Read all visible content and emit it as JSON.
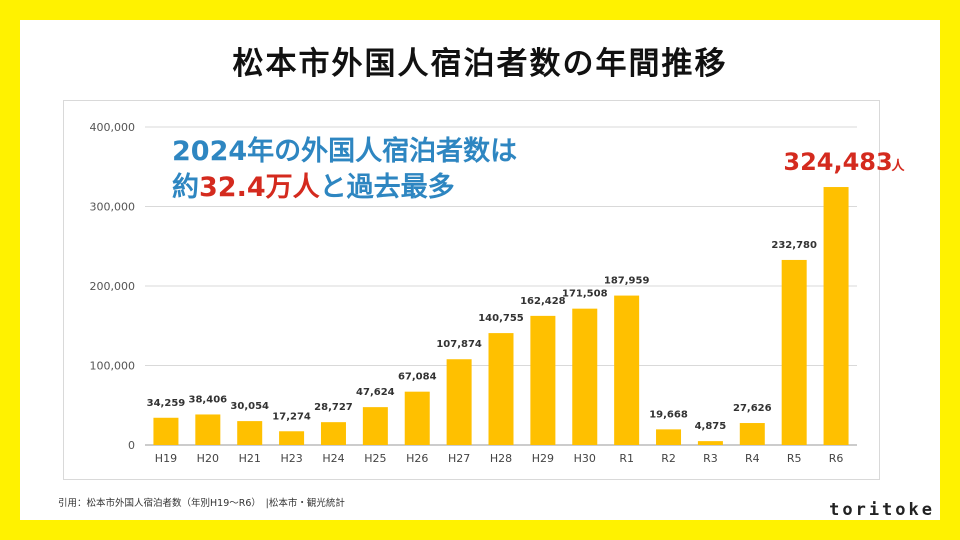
{
  "title": "松本市外国人宿泊者数の年間推移",
  "headline": {
    "line1": "2024年の外国人宿泊者数は",
    "line2_prefix": "約",
    "line2_highlight": "32.4万人",
    "line2_suffix": "と過去最多"
  },
  "citation": "引用：松本市外国人宿泊者数（年別H19〜R6）　|松本市・観光統計",
  "brand": "toritoke",
  "colors": {
    "frame": "#fff200",
    "bar": "#ffc000",
    "headline": "#2e86c1",
    "highlight": "#d42a1e",
    "grid": "#d9d9d9"
  },
  "chart_data": {
    "type": "bar",
    "categories": [
      "H19",
      "H20",
      "H21",
      "H23",
      "H24",
      "H25",
      "H26",
      "H27",
      "H28",
      "H29",
      "H30",
      "R1",
      "R2",
      "R3",
      "R4",
      "R5",
      "R6"
    ],
    "values": [
      34259,
      38406,
      30054,
      17274,
      28727,
      47624,
      67084,
      107874,
      140755,
      162428,
      171508,
      187959,
      19668,
      4875,
      27626,
      232780,
      324483
    ],
    "value_labels": [
      "34,259",
      "38,406",
      "30,054",
      "17,274",
      "28,727",
      "47,624",
      "67,084",
      "107,874",
      "140,755",
      "162,428",
      "171,508",
      "187,959",
      "19,668",
      "4,875",
      "27,626",
      "232,780",
      "324,483"
    ],
    "highlight_unit": "人",
    "y_ticks": [
      0,
      100000,
      200000,
      300000,
      400000
    ],
    "y_tick_labels": [
      "0",
      "100,000",
      "200,000",
      "300,000",
      "400,000"
    ],
    "ylim": [
      0,
      400000
    ],
    "grid": true,
    "title": "",
    "xlabel": "",
    "ylabel": ""
  }
}
